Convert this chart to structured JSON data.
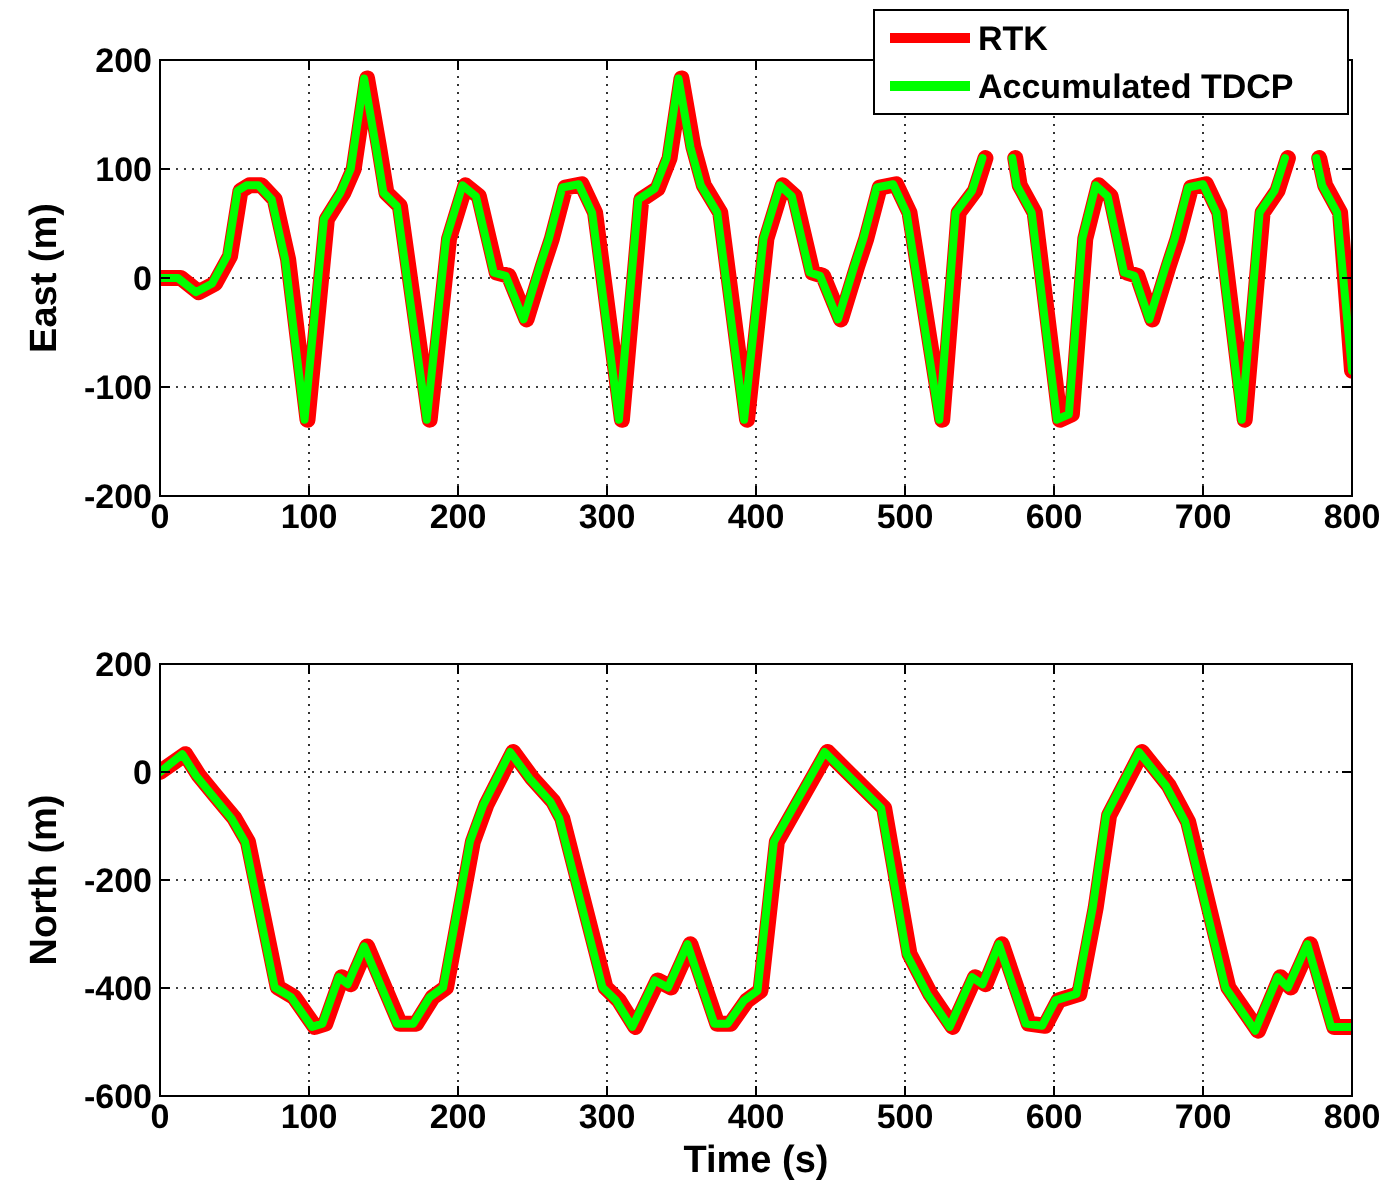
{
  "chart_data": [
    {
      "type": "line",
      "ylabel": "East (m)",
      "xlim": [
        0,
        800
      ],
      "xticks": [
        0,
        100,
        200,
        300,
        400,
        500,
        600,
        700,
        800
      ],
      "ylim": [
        -200,
        200
      ],
      "yticks": [
        -200,
        -100,
        0,
        100,
        200
      ],
      "grid": true,
      "legend": "top right",
      "line_style": "solid",
      "x": [
        0,
        12,
        24,
        35,
        45,
        52,
        58,
        66,
        75,
        84,
        97,
        110,
        121,
        128,
        137,
        145,
        150,
        159,
        179,
        192,
        203,
        212,
        224,
        232,
        244,
        255,
        261,
        270,
        281,
        290,
        308,
        321,
        332,
        340,
        348,
        356,
        363,
        374,
        392,
        405,
        416,
        424,
        436,
        443,
        455,
        466,
        472,
        481,
        492,
        501,
        523,
        534,
        545,
        552,
        559,
        566,
        572,
        575,
        585,
        602,
        610,
        619,
        628,
        636,
        647,
        654,
        664,
        675,
        681,
        690,
        700,
        709,
        726,
        738,
        748,
        755,
        763,
        770,
        776,
        780,
        790,
        800
      ],
      "series": [
        {
          "name": "RTK",
          "color": "#ff0000",
          "x": [
            0,
            14,
            26,
            37,
            47,
            54,
            60,
            68,
            77,
            86,
            99,
            112,
            123,
            130,
            139,
            147,
            152,
            161,
            181,
            194,
            205,
            214,
            226,
            234,
            246,
            257,
            263,
            272,
            283,
            292,
            310,
            323,
            334,
            342,
            350,
            358,
            365,
            376,
            394,
            407,
            418,
            426,
            438,
            445,
            457,
            468,
            474,
            483,
            494,
            503,
            525,
            536,
            547,
            554,
            561,
            568,
            574,
            577,
            587,
            604,
            612,
            621,
            630,
            638,
            649,
            656,
            666,
            677,
            683,
            692,
            702,
            711,
            728,
            740,
            750,
            757,
            765,
            772,
            778,
            782,
            792,
            800
          ],
          "values": [
            0,
            0,
            -13,
            -5,
            20,
            80,
            85,
            85,
            72,
            17,
            -130,
            54,
            78,
            100,
            183,
            120,
            78,
            66,
            -130,
            36,
            85,
            75,
            5,
            2,
            -38,
            11,
            36,
            83,
            86,
            60,
            -130,
            72,
            82,
            110,
            183,
            120,
            85,
            60,
            -130,
            36,
            85,
            75,
            5,
            2,
            -38,
            11,
            36,
            83,
            86,
            60,
            -130,
            60,
            80,
            110,
            null,
            null,
            110,
            85,
            60,
            -130,
            -125,
            36,
            85,
            75,
            5,
            2,
            -38,
            11,
            36,
            83,
            86,
            60,
            -130,
            60,
            80,
            110,
            null,
            null,
            110,
            85,
            60,
            -85
          ]
        },
        {
          "name": "Accumulated TDCP",
          "color": "#00ff00",
          "values": [
            0,
            0,
            -13,
            -5,
            20,
            80,
            85,
            85,
            72,
            17,
            -130,
            54,
            78,
            100,
            183,
            120,
            78,
            66,
            -130,
            36,
            85,
            75,
            5,
            2,
            -38,
            11,
            36,
            83,
            86,
            60,
            -130,
            72,
            82,
            110,
            183,
            120,
            85,
            60,
            -130,
            36,
            85,
            75,
            5,
            2,
            -38,
            11,
            36,
            83,
            86,
            60,
            -130,
            60,
            80,
            110,
            null,
            null,
            110,
            85,
            60,
            -130,
            -125,
            36,
            85,
            75,
            5,
            2,
            -38,
            11,
            36,
            83,
            86,
            60,
            -130,
            60,
            80,
            110,
            null,
            null,
            110,
            85,
            60,
            -85
          ]
        }
      ]
    },
    {
      "type": "line",
      "xlabel": "Time (s)",
      "ylabel": "North (m)",
      "xlim": [
        0,
        800
      ],
      "xticks": [
        0,
        100,
        200,
        300,
        400,
        500,
        600,
        700,
        800
      ],
      "ylim": [
        -600,
        200
      ],
      "yticks": [
        -600,
        -400,
        -200,
        0,
        200
      ],
      "grid": true,
      "line_style": "solid",
      "x": [
        0,
        15,
        24,
        35,
        48,
        57,
        77,
        88,
        102,
        109,
        120,
        126,
        137,
        159,
        170,
        181,
        190,
        208,
        217,
        235,
        248,
        262,
        268,
        297,
        306,
        317,
        332,
        341,
        354,
        372,
        381,
        392,
        401,
        412,
        446,
        484,
        501,
        515,
        530,
        545,
        552,
        563,
        581,
        592,
        601,
        615,
        626,
        635,
        657,
        675,
        688,
        715,
        735,
        750,
        757,
        770,
        786,
        795,
        800
      ],
      "series": [
        {
          "color": "#ff0000",
          "x": [
            0,
            17,
            26,
            37,
            50,
            59,
            79,
            90,
            104,
            111,
            122,
            128,
            139,
            161,
            172,
            183,
            192,
            210,
            219,
            237,
            250,
            264,
            270,
            299,
            308,
            319,
            334,
            343,
            356,
            374,
            383,
            394,
            403,
            414,
            448,
            486,
            503,
            517,
            532,
            547,
            554,
            565,
            583,
            594,
            603,
            617,
            628,
            637,
            659,
            677,
            690,
            717,
            737,
            752,
            759,
            772,
            788,
            797,
            800
          ],
          "values": [
            0,
            33,
            -6,
            -43,
            -86,
            -129,
            -399,
            -417,
            -472,
            -466,
            -380,
            -393,
            -323,
            -466,
            -466,
            -417,
            -399,
            -129,
            -61,
            37,
            -12,
            -55,
            -86,
            -399,
            -423,
            -472,
            -386,
            -399,
            -319,
            -466,
            -466,
            -423,
            -405,
            -129,
            37,
            -67,
            -337,
            -411,
            -472,
            -380,
            -393,
            -319,
            -466,
            -470,
            -423,
            -411,
            -251,
            -80,
            37,
            -25,
            -92,
            -399,
            -479,
            -380,
            -399,
            -319,
            -472,
            -472,
            -472
          ]
        },
        {
          "color": "#00ff00",
          "values": [
            0,
            33,
            -6,
            -43,
            -86,
            -129,
            -399,
            -417,
            -472,
            -466,
            -380,
            -393,
            -323,
            -466,
            -466,
            -417,
            -399,
            -129,
            -61,
            37,
            -12,
            -55,
            -86,
            -399,
            -423,
            -472,
            -386,
            -399,
            -319,
            -466,
            -466,
            -423,
            -405,
            -129,
            37,
            -67,
            -337,
            -411,
            -472,
            -380,
            -393,
            -319,
            -466,
            -470,
            -423,
            -411,
            -251,
            -80,
            37,
            -25,
            -92,
            -399,
            -479,
            -380,
            -399,
            -319,
            -472,
            -472,
            -472
          ]
        }
      ]
    }
  ]
}
